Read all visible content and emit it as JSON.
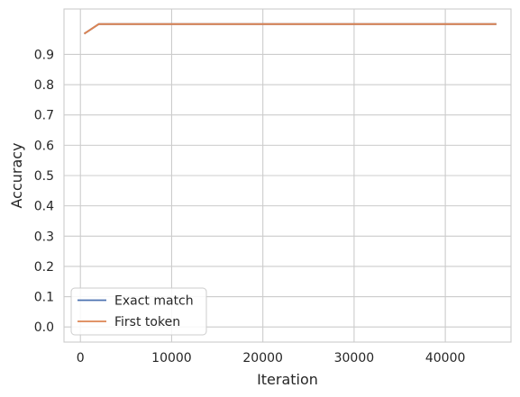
{
  "chart_data": {
    "type": "line",
    "title": "",
    "xlabel": "Iteration",
    "ylabel": "Accuracy",
    "xlim": [
      -1800,
      47200
    ],
    "ylim": [
      -0.05,
      1.05
    ],
    "x_ticks": [
      0,
      10000,
      20000,
      30000,
      40000
    ],
    "x_tick_labels": [
      "0",
      "10000",
      "20000",
      "30000",
      "40000"
    ],
    "y_ticks": [
      0.0,
      0.1,
      0.2,
      0.3,
      0.4,
      0.5,
      0.6,
      0.7,
      0.8,
      0.9
    ],
    "y_tick_labels": [
      "0.0",
      "0.1",
      "0.2",
      "0.3",
      "0.4",
      "0.5",
      "0.6",
      "0.7",
      "0.8",
      "0.9"
    ],
    "grid": true,
    "legend_position": "lower left",
    "series": [
      {
        "name": "Exact match",
        "color": "#4c72b0",
        "x": [
          500,
          2000,
          3500,
          5000,
          10000,
          15000,
          20000,
          25000,
          30000,
          35000,
          40000,
          45500
        ],
        "y": [
          0.97,
          1.0,
          1.0,
          1.0,
          1.0,
          1.0,
          1.0,
          1.0,
          1.0,
          1.0,
          1.0,
          1.0
        ]
      },
      {
        "name": "First token",
        "color": "#dd8452",
        "x": [
          500,
          2000,
          3500,
          5000,
          10000,
          15000,
          20000,
          25000,
          30000,
          35000,
          40000,
          45500
        ],
        "y": [
          0.97,
          1.0,
          1.0,
          1.0,
          1.0,
          1.0,
          1.0,
          1.0,
          1.0,
          1.0,
          1.0,
          1.0
        ]
      }
    ]
  }
}
